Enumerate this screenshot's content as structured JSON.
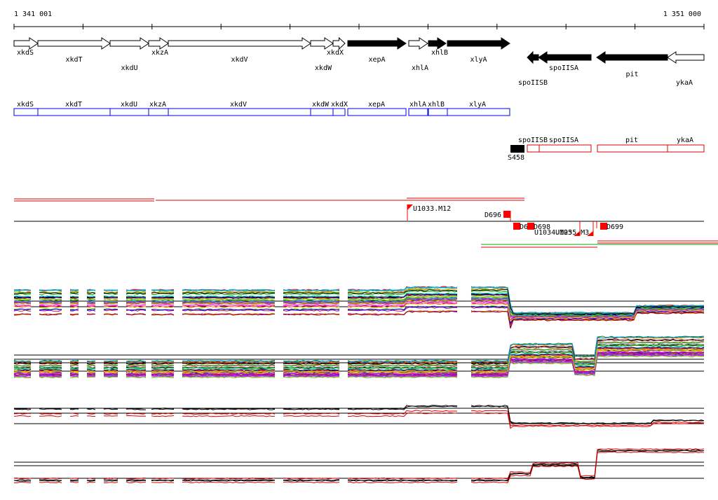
{
  "ruler": {
    "start_label": "1 341 001",
    "end_label": "1 351 000"
  },
  "genes_top": [
    {
      "name": "xkdS",
      "dir": "fwd",
      "fill": "white"
    },
    {
      "name": "xkdT",
      "dir": "fwd",
      "fill": "white"
    },
    {
      "name": "xkdU",
      "dir": "fwd",
      "fill": "white"
    },
    {
      "name": "xkzA",
      "dir": "fwd",
      "fill": "white"
    },
    {
      "name": "xkdV",
      "dir": "fwd",
      "fill": "white"
    },
    {
      "name": "xkdW",
      "dir": "fwd",
      "fill": "white"
    },
    {
      "name": "xkdX",
      "dir": "fwd",
      "fill": "white"
    },
    {
      "name": "xepA",
      "dir": "fwd",
      "fill": "black"
    },
    {
      "name": "xhlA",
      "dir": "fwd",
      "fill": "white"
    },
    {
      "name": "xhlB",
      "dir": "fwd",
      "fill": "black"
    },
    {
      "name": "xlyA",
      "dir": "fwd",
      "fill": "black"
    },
    {
      "name": "spoIISB",
      "dir": "rev",
      "fill": "black"
    },
    {
      "name": "spoIISA",
      "dir": "rev",
      "fill": "black"
    },
    {
      "name": "pit",
      "dir": "rev",
      "fill": "black"
    },
    {
      "name": "ykaA",
      "dir": "rev",
      "fill": "white"
    }
  ],
  "blue_track": [
    "xkdS",
    "xkdT",
    "xkdU",
    "xkzA",
    "xkdV",
    "xkdW",
    "xkdX",
    "xepA",
    "xhlA",
    "xhlB",
    "xlyA"
  ],
  "red_track": [
    "spoIISB",
    "spoIISA",
    "pit",
    "ykaA"
  ],
  "black_feature": {
    "label": "S458"
  },
  "markers": [
    "U1033.M12",
    "D696",
    "D6",
    "D698",
    "U1034.M25",
    "U1035.M3",
    "D699"
  ],
  "colors": {
    "blue_track": "#0000ee",
    "red_track": "#dd0000",
    "marker": "#ff0000",
    "green_line": "#00aa00"
  },
  "chart_data": {
    "type": "line",
    "panels": [
      {
        "series_count": 40,
        "level_left": "low",
        "level_right": "low"
      },
      {
        "series_count": 40,
        "level_left": "low",
        "level_right": "high"
      },
      {
        "series_count": 4,
        "colors": [
          "black",
          "red"
        ],
        "level_left": "mid",
        "level_right": "low"
      },
      {
        "series_count": 4,
        "colors": [
          "black",
          "red"
        ],
        "level_left": "low",
        "level_right": "high"
      }
    ]
  }
}
